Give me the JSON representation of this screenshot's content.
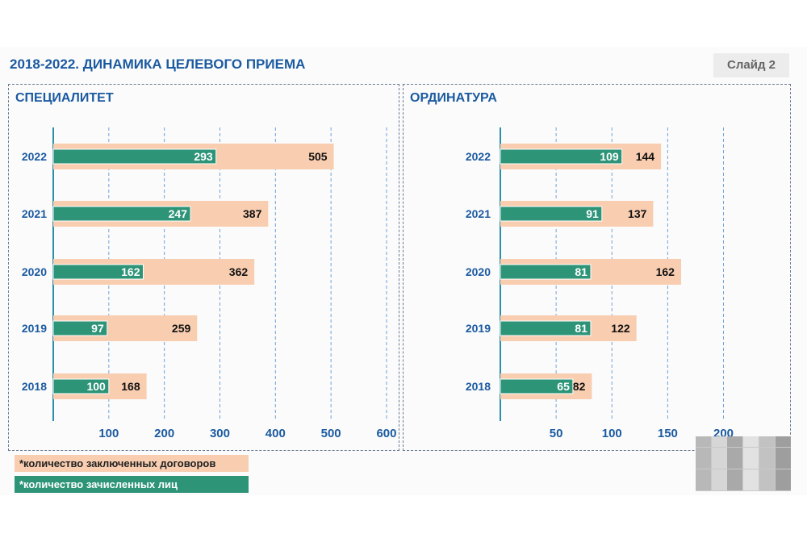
{
  "header": {
    "title": "2018-2022. ДИНАМИКА ЦЕЛЕВОГО ПРИЕМА",
    "slide_label": "Слайд 2"
  },
  "colors": {
    "contracts": "#f8cdb0",
    "enrolled": "#2e9478",
    "accent": "#1b5aa0"
  },
  "legend": {
    "contracts": "*количество заключенных договоров",
    "enrolled": "*количество зачисленных лиц"
  },
  "chart_data": [
    {
      "type": "bar",
      "orientation": "horizontal",
      "title": "СПЕЦИАЛИТЕТ",
      "categories": [
        "2022",
        "2021",
        "2020",
        "2019",
        "2018"
      ],
      "series": [
        {
          "name": "*количество заключенных договоров",
          "values": [
            505,
            387,
            362,
            259,
            168
          ]
        },
        {
          "name": "*количество зачисленных лиц",
          "values": [
            293,
            247,
            162,
            97,
            100
          ]
        }
      ],
      "xlim": [
        0,
        600
      ],
      "xticks": [
        100,
        200,
        300,
        400,
        500,
        600
      ],
      "grid": true
    },
    {
      "type": "bar",
      "orientation": "horizontal",
      "title": "ОРДИНАТУРА",
      "categories": [
        "2022",
        "2021",
        "2020",
        "2019",
        "2018"
      ],
      "series": [
        {
          "name": "*количество заключенных договоров",
          "values": [
            144,
            137,
            162,
            122,
            82
          ]
        },
        {
          "name": "*количество зачисленных лиц",
          "values": [
            109,
            91,
            81,
            81,
            65
          ]
        }
      ],
      "xlim": [
        0,
        200
      ],
      "xticks": [
        50,
        100,
        150,
        200
      ],
      "grid": true
    }
  ]
}
